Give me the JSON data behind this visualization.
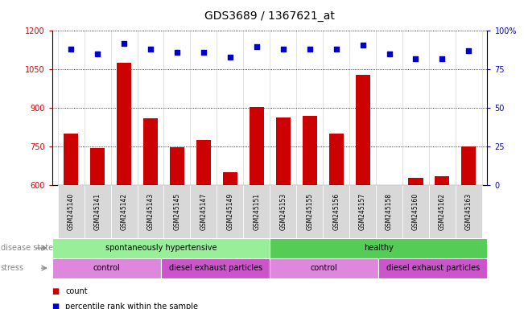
{
  "title": "GDS3689 / 1367621_at",
  "samples": [
    "GSM245140",
    "GSM245141",
    "GSM245142",
    "GSM245143",
    "GSM245145",
    "GSM245147",
    "GSM245149",
    "GSM245151",
    "GSM245153",
    "GSM245155",
    "GSM245156",
    "GSM245157",
    "GSM245158",
    "GSM245160",
    "GSM245162",
    "GSM245163"
  ],
  "bar_values": [
    800,
    745,
    1075,
    860,
    748,
    775,
    650,
    905,
    865,
    870,
    800,
    1030,
    600,
    630,
    635,
    750
  ],
  "dot_values": [
    88,
    85,
    92,
    88,
    86,
    86,
    83,
    90,
    88,
    88,
    88,
    91,
    85,
    82,
    82,
    87
  ],
  "bar_color": "#cc0000",
  "dot_color": "#0000cc",
  "ylim_left": [
    600,
    1200
  ],
  "ylim_right": [
    0,
    100
  ],
  "yticks_left": [
    600,
    750,
    900,
    1050,
    1200
  ],
  "yticks_right": [
    0,
    25,
    50,
    75,
    100
  ],
  "background_color": "#ffffff",
  "chart_bg": "#ffffff",
  "disease_state_groups": [
    {
      "label": "spontaneously hypertensive",
      "start": 0,
      "end": 8,
      "color": "#99ee99"
    },
    {
      "label": "healthy",
      "start": 8,
      "end": 16,
      "color": "#55cc55"
    }
  ],
  "stress_groups": [
    {
      "label": "control",
      "start": 0,
      "end": 4,
      "color": "#dd88dd"
    },
    {
      "label": "diesel exhaust particles",
      "start": 4,
      "end": 8,
      "color": "#cc55cc"
    },
    {
      "label": "control",
      "start": 8,
      "end": 12,
      "color": "#dd88dd"
    },
    {
      "label": "diesel exhaust particles",
      "start": 12,
      "end": 16,
      "color": "#cc55cc"
    }
  ],
  "legend_count_label": "count",
  "legend_pct_label": "percentile rank within the sample",
  "disease_state_label": "disease state",
  "stress_label": "stress",
  "title_fontsize": 10,
  "tick_fontsize": 7,
  "label_fontsize": 8,
  "annotation_fontsize": 8
}
